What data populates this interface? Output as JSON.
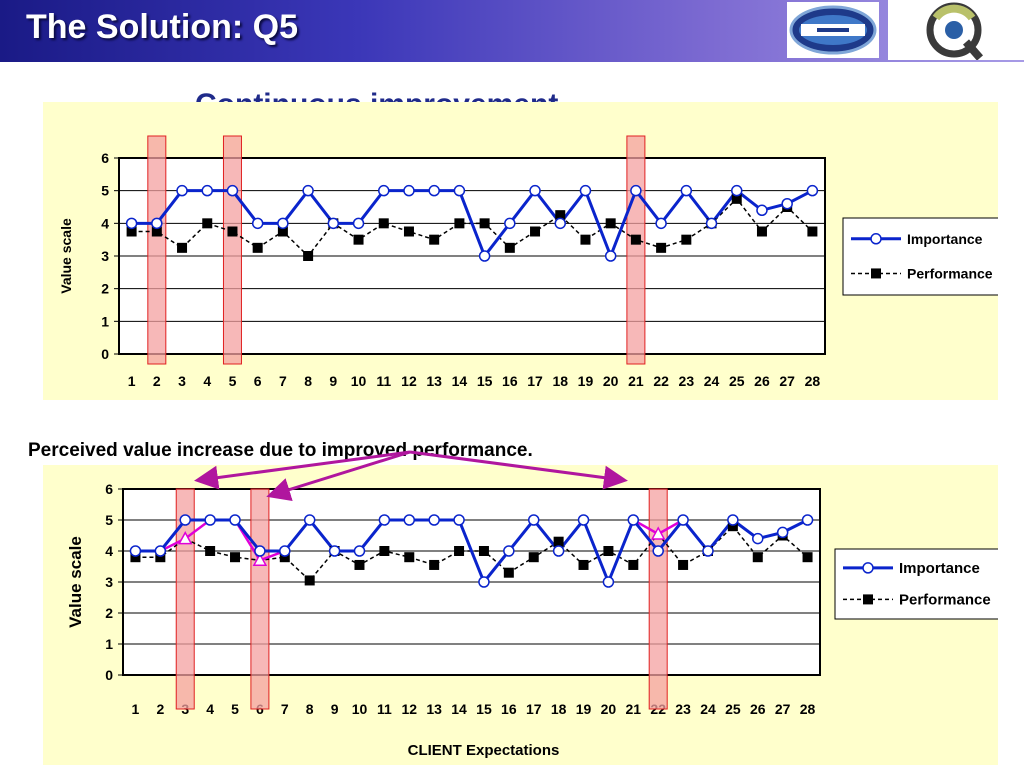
{
  "header": {
    "title": "The Solution: Q5"
  },
  "subtitle": "Continuous improvement",
  "caption": "Perceived value increase due to improved performance.",
  "colors": {
    "importance": "#0a24cc",
    "improved": "#e000d8",
    "highlight_fill": "#f4a0a0",
    "highlight_stroke": "#e02020",
    "arrow": "#b0169e",
    "panel": "#ffffcc"
  },
  "chart_data": [
    {
      "type": "line",
      "x": [
        1,
        2,
        3,
        4,
        5,
        6,
        7,
        8,
        9,
        10,
        11,
        12,
        13,
        14,
        15,
        16,
        17,
        18,
        19,
        20,
        21,
        22,
        23,
        24,
        25,
        26,
        27,
        28
      ],
      "xlabel": "",
      "ylabel": "Value scale",
      "ylim": [
        0,
        6
      ],
      "yticks": [
        "0",
        "1",
        "2",
        "3",
        "4",
        "5",
        "6"
      ],
      "grid": true,
      "legend_position": "right",
      "highlighted_x": [
        2,
        5,
        21
      ],
      "series": [
        {
          "name": "Importance",
          "values": [
            4,
            4,
            5,
            5,
            5,
            4,
            4,
            5,
            4,
            4,
            5,
            5,
            5,
            5,
            3,
            4,
            5,
            4,
            5,
            3,
            5,
            4,
            5,
            4,
            5,
            4.4,
            4.6,
            5
          ]
        },
        {
          "name": "Performance",
          "values": [
            3.75,
            3.75,
            3.25,
            4,
            3.75,
            3.25,
            3.75,
            3,
            4,
            3.5,
            4,
            3.75,
            3.5,
            4,
            4,
            3.25,
            3.75,
            4.25,
            3.5,
            4,
            3.5,
            3.25,
            3.5,
            4,
            4.75,
            3.75,
            4.5,
            3.75
          ]
        }
      ]
    },
    {
      "type": "line",
      "x": [
        1,
        2,
        3,
        4,
        5,
        6,
        7,
        8,
        9,
        10,
        11,
        12,
        13,
        14,
        15,
        16,
        17,
        18,
        19,
        20,
        21,
        22,
        23,
        24,
        25,
        26,
        27,
        28
      ],
      "xlabel": "CLIENT Expectations",
      "ylabel": "Value scale",
      "ylim": [
        0,
        6
      ],
      "yticks": [
        "0",
        "1",
        "2",
        "3",
        "4",
        "5",
        "6"
      ],
      "grid": true,
      "legend_position": "right",
      "highlighted_x": [
        3,
        6,
        22
      ],
      "series": [
        {
          "name": "Importance",
          "values": [
            4,
            4,
            5,
            5,
            5,
            4,
            4,
            5,
            4,
            4,
            5,
            5,
            5,
            5,
            3,
            4,
            5,
            4,
            5,
            3,
            5,
            4,
            5,
            4,
            5,
            4.4,
            4.6,
            5
          ]
        },
        {
          "name": "Performance",
          "values": [
            3.8,
            3.8,
            4.4,
            4,
            3.8,
            3.7,
            3.8,
            3.05,
            4,
            3.55,
            4,
            3.8,
            3.55,
            4,
            4,
            3.3,
            3.8,
            4.3,
            3.55,
            4,
            3.55,
            4.55,
            3.55,
            4,
            4.8,
            3.8,
            4.5,
            3.8
          ]
        }
      ],
      "improved_points": [
        {
          "x": 3,
          "value": 4.4
        },
        {
          "x": 6,
          "value": 3.7
        },
        {
          "x": 22,
          "value": 4.55
        }
      ]
    }
  ]
}
